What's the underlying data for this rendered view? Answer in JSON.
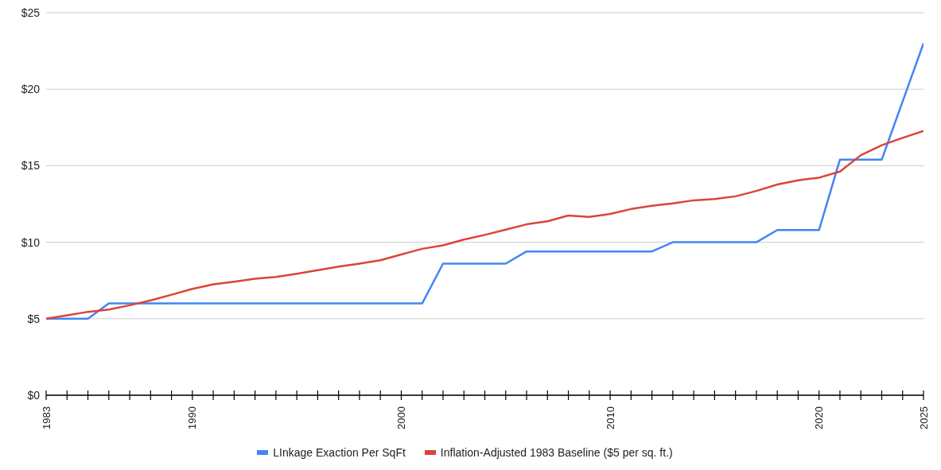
{
  "chart_data": {
    "type": "line",
    "x": [
      1983,
      1984,
      1985,
      1986,
      1987,
      1988,
      1989,
      1990,
      1991,
      1992,
      1993,
      1994,
      1995,
      1996,
      1997,
      1998,
      1999,
      2000,
      2001,
      2002,
      2003,
      2004,
      2005,
      2006,
      2007,
      2008,
      2009,
      2010,
      2011,
      2012,
      2013,
      2014,
      2015,
      2016,
      2017,
      2018,
      2019,
      2020,
      2021,
      2022,
      2023,
      2024,
      2025
    ],
    "series": [
      {
        "name": "LInkage Exaction Per SqFt",
        "color": "#4285f4",
        "values": [
          5,
          5,
          5,
          6,
          6,
          6,
          6,
          6,
          6,
          6,
          6,
          6,
          6,
          6,
          6,
          6,
          6,
          6,
          6,
          8.6,
          8.6,
          8.6,
          8.6,
          9.4,
          9.4,
          9.4,
          9.4,
          9.4,
          9.4,
          9.4,
          10,
          10,
          10,
          10,
          10,
          10.8,
          10.8,
          10.8,
          15.4,
          15.4,
          15.4,
          19.2,
          23
        ]
      },
      {
        "name": "Inflation-Adjusted 1983 Baseline ($5 per sq. ft.)",
        "color": "#db4437",
        "values": [
          5,
          5.22,
          5.45,
          5.6,
          5.88,
          6.2,
          6.57,
          6.95,
          7.25,
          7.42,
          7.62,
          7.73,
          7.94,
          8.17,
          8.41,
          8.6,
          8.82,
          9.2,
          9.57,
          9.8,
          10.17,
          10.48,
          10.82,
          11.17,
          11.37,
          11.75,
          11.65,
          11.85,
          12.17,
          12.38,
          12.54,
          12.74,
          12.82,
          13,
          13.35,
          13.77,
          14.05,
          14.22,
          14.62,
          15.69,
          16.34,
          16.82,
          17.27
        ]
      }
    ],
    "xlim": [
      1983,
      2025
    ],
    "xticks": [
      1983,
      {
        "value": 1984,
        "label": null
      },
      {
        "value": 1985,
        "label": null
      },
      {
        "value": 1986,
        "label": null
      },
      {
        "value": 1987,
        "label": null
      },
      {
        "value": 1988,
        "label": null
      },
      {
        "value": 1989,
        "label": null
      },
      1990,
      {
        "value": 1991,
        "label": null
      },
      {
        "value": 1992,
        "label": null
      },
      {
        "value": 1993,
        "label": null
      },
      {
        "value": 1994,
        "label": null
      },
      {
        "value": 1995,
        "label": null
      },
      {
        "value": 1996,
        "label": null
      },
      {
        "value": 1997,
        "label": null
      },
      {
        "value": 1998,
        "label": null
      },
      {
        "value": 1999,
        "label": null
      },
      2000,
      {
        "value": 2001,
        "label": null
      },
      {
        "value": 2002,
        "label": null
      },
      {
        "value": 2003,
        "label": null
      },
      {
        "value": 2004,
        "label": null
      },
      {
        "value": 2005,
        "label": null
      },
      {
        "value": 2006,
        "label": null
      },
      {
        "value": 2007,
        "label": null
      },
      {
        "value": 2008,
        "label": null
      },
      {
        "value": 2009,
        "label": null
      },
      2010,
      {
        "value": 2011,
        "label": null
      },
      {
        "value": 2012,
        "label": null
      },
      {
        "value": 2013,
        "label": null
      },
      {
        "value": 2014,
        "label": null
      },
      {
        "value": 2015,
        "label": null
      },
      {
        "value": 2016,
        "label": null
      },
      {
        "value": 2017,
        "label": null
      },
      {
        "value": 2018,
        "label": null
      },
      {
        "value": 2019,
        "label": null
      },
      2020,
      {
        "value": 2021,
        "label": null
      },
      {
        "value": 2022,
        "label": null
      },
      {
        "value": 2023,
        "label": null
      },
      {
        "value": 2024,
        "label": null
      },
      2025
    ],
    "ylim": [
      0,
      25
    ],
    "yticks": [
      {
        "value": 0,
        "label": "$0"
      },
      {
        "value": 5,
        "label": "$5"
      },
      {
        "value": 10,
        "label": "$10"
      },
      {
        "value": 15,
        "label": "$15"
      },
      {
        "value": 20,
        "label": "$20"
      },
      {
        "value": 25,
        "label": "$25"
      }
    ],
    "grid": "y",
    "legend": "bottom",
    "marker": "none",
    "line_style": "solid"
  }
}
